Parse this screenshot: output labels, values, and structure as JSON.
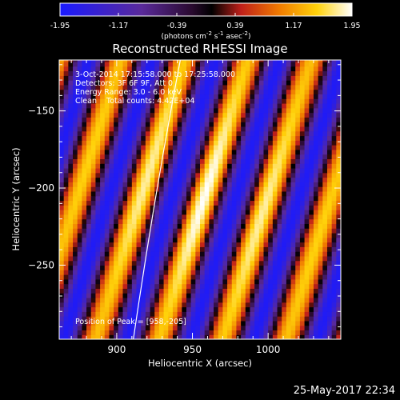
{
  "colorbar": {
    "ticks": [
      "-1.95",
      "-1.17",
      "-0.39",
      "0.39",
      "1.17",
      "1.95"
    ],
    "unit": "(photons cm",
    "unit_exp1": "-2",
    "unit_mid": " s",
    "unit_exp2": "-1",
    "unit_mid2": " asec",
    "unit_exp3": "-2",
    "unit_close": ")"
  },
  "plot": {
    "title": "Reconstructed RHESSI Image",
    "line1": "3-Oct-2014 17:15:58.000 to 17:25:58.000",
    "line2": "Detectors: 3F 6F 9F, Att 0",
    "line3": "Energy Range: 3.0 - 6.0 keV",
    "line4": "Clean    Total counts: 4.42E+04",
    "peak": "Position of Peak = [958,-205]",
    "xlabel": "Heliocentric X (arcsec)",
    "ylabel": "Heliocentric Y (arcsec)"
  },
  "timestamp": "25-May-2017 22:34",
  "chart_data": {
    "type": "heatmap",
    "title": "Reconstructed RHESSI Image",
    "xlabel": "Heliocentric X (arcsec)",
    "ylabel": "Heliocentric Y (arcsec)",
    "xlim": [
      862,
      1048
    ],
    "ylim": [
      -298,
      -117
    ],
    "xticks": [
      900,
      950,
      1000
    ],
    "yticks": [
      -150,
      -200,
      -250
    ],
    "color_range": [
      -1.95,
      1.95
    ],
    "colormap": "blue-purple-red-yellow-white",
    "peak": [
      958,
      -205
    ],
    "fringe_slope": 3.1,
    "fringe_period_x": 42,
    "limb_line": [
      [
        911,
        -298
      ],
      [
        942,
        -117
      ]
    ]
  }
}
